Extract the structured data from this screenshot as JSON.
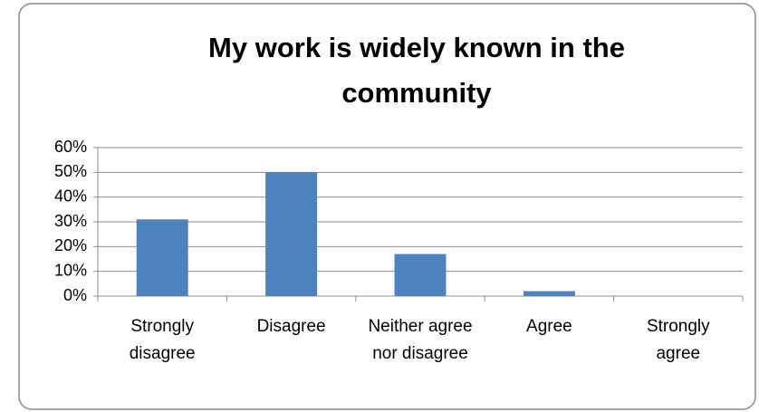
{
  "chart_data": {
    "type": "bar",
    "title": "My work is widely known in the community",
    "categories": [
      "Strongly disagree",
      "Disagree",
      "Neither agree nor disagree",
      "Agree",
      "Strongly agree"
    ],
    "values": [
      31,
      50,
      17,
      2,
      0
    ],
    "color": "#4f81bd",
    "ylim": [
      0,
      60
    ],
    "yticks": [
      {
        "value": 0,
        "label": "0%"
      },
      {
        "value": 10,
        "label": "10%"
      },
      {
        "value": 20,
        "label": "20%"
      },
      {
        "value": 30,
        "label": "30%"
      },
      {
        "value": 40,
        "label": "40%"
      },
      {
        "value": 50,
        "label": "50%"
      },
      {
        "value": 60,
        "label": "60%"
      }
    ],
    "grid": true
  }
}
